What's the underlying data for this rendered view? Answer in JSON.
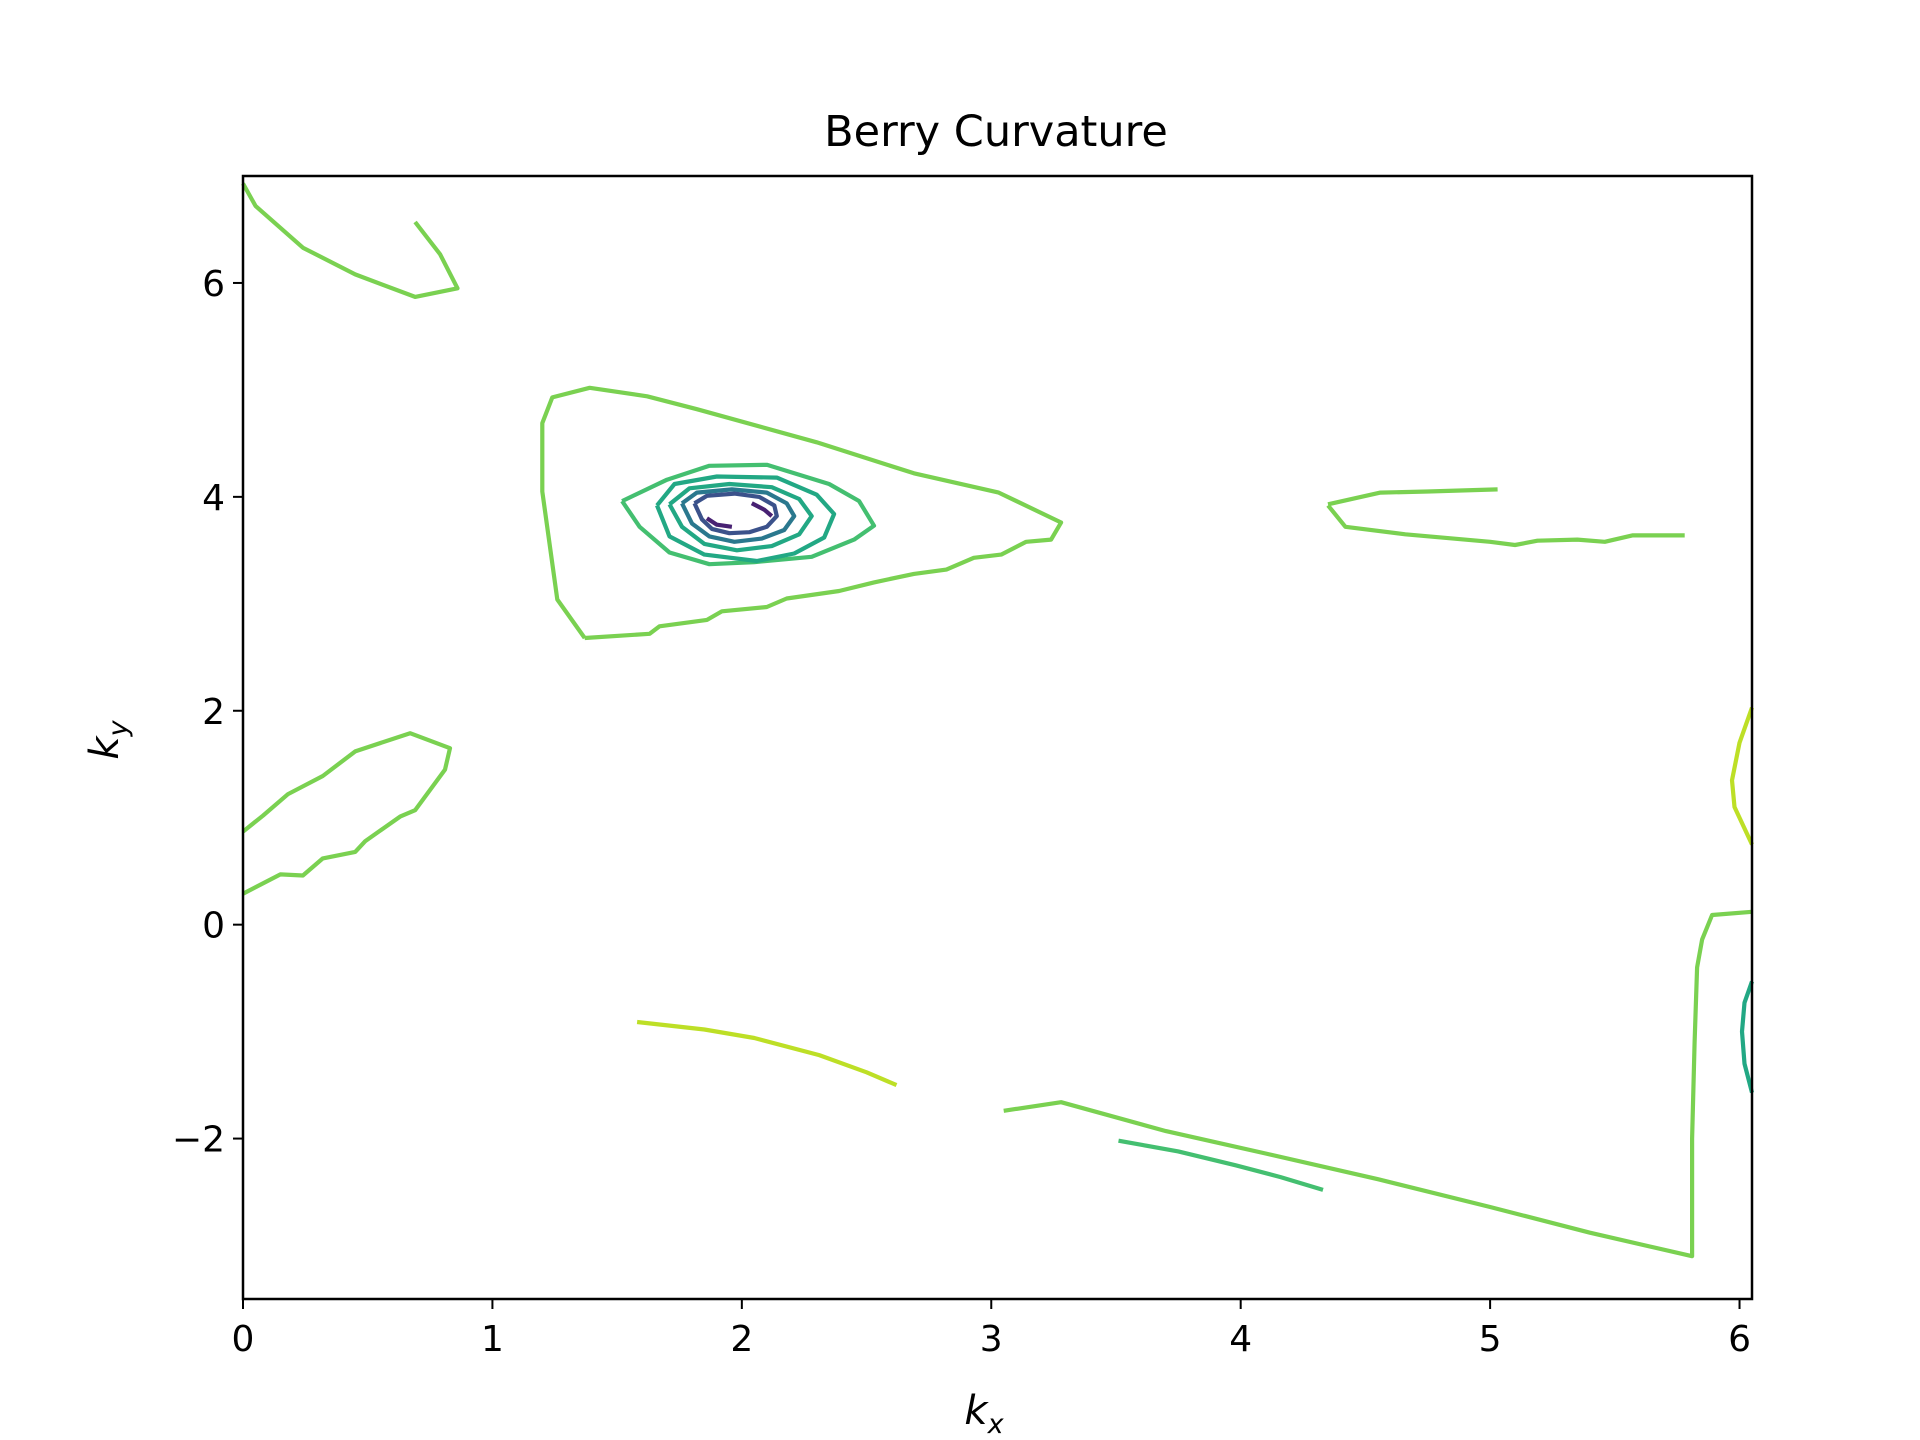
{
  "chart_data": {
    "type": "contour",
    "title": "Berry Curvature",
    "xlabel": {
      "base": "k",
      "sub": "x"
    },
    "ylabel": {
      "base": "k",
      "sub": "y"
    },
    "xlim": [
      0,
      6.05
    ],
    "ylim": [
      -3.5,
      7.0
    ],
    "xticks": [
      0,
      1,
      2,
      3,
      4,
      5,
      6
    ],
    "xtick_labels": [
      "0",
      "1",
      "2",
      "3",
      "4",
      "5",
      "6"
    ],
    "yticks": [
      -2,
      0,
      2,
      4,
      6
    ],
    "ytick_labels": [
      "−2",
      "0",
      "2",
      "4",
      "6"
    ],
    "grid": false,
    "colormap": "viridis",
    "colors": {
      "light_green": "#7ad151",
      "yellow_green": "#bddf26",
      "mid_green": "#44bf70",
      "teal": "#22a884",
      "blue_teal": "#2a788e",
      "blue": "#3b528b",
      "purple": "#482173"
    },
    "contours": [
      {
        "color": "light_green",
        "points": [
          [
            0.0,
            6.93
          ],
          [
            0.05,
            6.72
          ],
          [
            0.24,
            6.33
          ],
          [
            0.45,
            6.08
          ],
          [
            0.69,
            5.87
          ],
          [
            0.86,
            5.95
          ],
          [
            0.79,
            6.27
          ],
          [
            0.69,
            6.57
          ]
        ]
      },
      {
        "color": "light_green",
        "points": [
          [
            1.37,
            2.68
          ],
          [
            1.63,
            2.72
          ],
          [
            1.67,
            2.79
          ],
          [
            1.86,
            2.85
          ],
          [
            1.92,
            2.93
          ],
          [
            2.1,
            2.97
          ],
          [
            2.18,
            3.05
          ],
          [
            2.39,
            3.12
          ],
          [
            2.53,
            3.2
          ],
          [
            2.69,
            3.28
          ],
          [
            2.82,
            3.32
          ],
          [
            2.93,
            3.43
          ],
          [
            3.04,
            3.46
          ],
          [
            3.14,
            3.58
          ],
          [
            3.24,
            3.6
          ],
          [
            3.28,
            3.76
          ],
          [
            3.03,
            4.04
          ],
          [
            2.69,
            4.22
          ],
          [
            2.3,
            4.51
          ],
          [
            1.82,
            4.82
          ],
          [
            1.62,
            4.94
          ],
          [
            1.39,
            5.02
          ],
          [
            1.24,
            4.93
          ],
          [
            1.2,
            4.69
          ],
          [
            1.2,
            4.05
          ],
          [
            1.26,
            3.04
          ],
          [
            1.37,
            2.68
          ]
        ]
      },
      {
        "color": "mid_green",
        "points": [
          [
            1.52,
            3.96
          ],
          [
            1.7,
            4.16
          ],
          [
            1.87,
            4.29
          ],
          [
            2.1,
            4.3
          ],
          [
            2.35,
            4.12
          ],
          [
            2.47,
            3.96
          ],
          [
            2.53,
            3.73
          ],
          [
            2.45,
            3.6
          ],
          [
            2.28,
            3.44
          ],
          [
            2.05,
            3.39
          ],
          [
            1.87,
            3.37
          ],
          [
            1.71,
            3.48
          ],
          [
            1.59,
            3.72
          ],
          [
            1.52,
            3.96
          ]
        ]
      },
      {
        "color": "teal",
        "points": [
          [
            1.66,
            3.92
          ],
          [
            1.73,
            4.12
          ],
          [
            1.9,
            4.19
          ],
          [
            2.14,
            4.18
          ],
          [
            2.3,
            4.02
          ],
          [
            2.37,
            3.84
          ],
          [
            2.33,
            3.62
          ],
          [
            2.21,
            3.47
          ],
          [
            2.06,
            3.4
          ],
          [
            1.85,
            3.46
          ],
          [
            1.71,
            3.63
          ],
          [
            1.66,
            3.92
          ]
        ]
      },
      {
        "color": "teal",
        "points": [
          [
            1.71,
            3.93
          ],
          [
            1.79,
            4.08
          ],
          [
            1.95,
            4.12
          ],
          [
            2.12,
            4.09
          ],
          [
            2.23,
            3.98
          ],
          [
            2.28,
            3.82
          ],
          [
            2.23,
            3.65
          ],
          [
            2.12,
            3.54
          ],
          [
            1.98,
            3.5
          ],
          [
            1.85,
            3.56
          ],
          [
            1.76,
            3.72
          ],
          [
            1.71,
            3.93
          ]
        ]
      },
      {
        "color": "blue_teal",
        "points": [
          [
            1.76,
            3.94
          ],
          [
            1.82,
            4.04
          ],
          [
            1.96,
            4.07
          ],
          [
            2.1,
            4.04
          ],
          [
            2.18,
            3.94
          ],
          [
            2.21,
            3.82
          ],
          [
            2.17,
            3.69
          ],
          [
            2.08,
            3.61
          ],
          [
            1.97,
            3.58
          ],
          [
            1.87,
            3.63
          ],
          [
            1.8,
            3.75
          ],
          [
            1.76,
            3.94
          ]
        ]
      },
      {
        "color": "blue",
        "points": [
          [
            1.81,
            3.94
          ],
          [
            1.86,
            4.01
          ],
          [
            1.97,
            4.03
          ],
          [
            2.07,
            4.0
          ],
          [
            2.13,
            3.92
          ],
          [
            2.14,
            3.82
          ],
          [
            2.1,
            3.72
          ],
          [
            2.03,
            3.67
          ],
          [
            1.95,
            3.66
          ],
          [
            1.88,
            3.7
          ],
          [
            1.84,
            3.79
          ],
          [
            1.81,
            3.94
          ]
        ]
      },
      {
        "color": "purple",
        "points": [
          [
            1.86,
            3.8
          ],
          [
            1.9,
            3.74
          ],
          [
            1.96,
            3.72
          ]
        ]
      },
      {
        "color": "purple",
        "points": [
          [
            2.04,
            3.94
          ],
          [
            2.09,
            3.88
          ],
          [
            2.12,
            3.82
          ]
        ]
      },
      {
        "color": "light_green",
        "points": [
          [
            0.0,
            0.87
          ],
          [
            0.08,
            1.02
          ],
          [
            0.18,
            1.22
          ],
          [
            0.32,
            1.39
          ],
          [
            0.45,
            1.62
          ],
          [
            0.67,
            1.79
          ],
          [
            0.83,
            1.65
          ],
          [
            0.81,
            1.45
          ],
          [
            0.69,
            1.07
          ],
          [
            0.63,
            1.01
          ],
          [
            0.49,
            0.78
          ],
          [
            0.45,
            0.68
          ],
          [
            0.32,
            0.62
          ],
          [
            0.24,
            0.46
          ],
          [
            0.15,
            0.47
          ],
          [
            0.0,
            0.29
          ]
        ]
      },
      {
        "color": "light_green",
        "points": [
          [
            4.35,
            3.92
          ],
          [
            4.42,
            3.72
          ],
          [
            4.66,
            3.65
          ],
          [
            5.0,
            3.58
          ],
          [
            5.1,
            3.55
          ],
          [
            5.19,
            3.59
          ],
          [
            5.35,
            3.6
          ],
          [
            5.46,
            3.58
          ],
          [
            5.57,
            3.64
          ],
          [
            5.78,
            3.64
          ]
        ]
      },
      {
        "color": "light_green",
        "points": [
          [
            4.35,
            3.93
          ],
          [
            4.56,
            4.04
          ],
          [
            4.75,
            4.05
          ],
          [
            5.03,
            4.07
          ]
        ]
      },
      {
        "color": "yellow_green",
        "points": [
          [
            6.05,
            2.03
          ],
          [
            6.0,
            1.7
          ],
          [
            5.97,
            1.35
          ],
          [
            5.98,
            1.1
          ],
          [
            6.05,
            0.75
          ]
        ]
      },
      {
        "color": "light_green",
        "points": [
          [
            6.05,
            0.12
          ],
          [
            5.89,
            0.09
          ],
          [
            5.85,
            -0.14
          ],
          [
            5.83,
            -0.4
          ],
          [
            5.82,
            -1.1
          ],
          [
            5.81,
            -2.0
          ],
          [
            5.81,
            -3.1
          ],
          [
            5.4,
            -2.88
          ],
          [
            5.0,
            -2.64
          ],
          [
            4.55,
            -2.38
          ],
          [
            4.1,
            -2.14
          ],
          [
            3.7,
            -1.93
          ],
          [
            3.28,
            -1.66
          ],
          [
            3.05,
            -1.74
          ]
        ]
      },
      {
        "color": "yellow_green",
        "points": [
          [
            1.58,
            -0.91
          ],
          [
            1.85,
            -0.98
          ],
          [
            2.05,
            -1.06
          ],
          [
            2.31,
            -1.22
          ],
          [
            2.5,
            -1.38
          ],
          [
            2.62,
            -1.5
          ]
        ]
      },
      {
        "color": "mid_green",
        "points": [
          [
            3.51,
            -2.02
          ],
          [
            3.75,
            -2.12
          ],
          [
            3.98,
            -2.25
          ],
          [
            4.16,
            -2.36
          ],
          [
            4.33,
            -2.48
          ]
        ]
      },
      {
        "color": "teal",
        "points": [
          [
            6.05,
            -0.53
          ],
          [
            6.02,
            -0.73
          ],
          [
            6.01,
            -1.0
          ],
          [
            6.02,
            -1.3
          ],
          [
            6.05,
            -1.57
          ]
        ]
      }
    ]
  }
}
